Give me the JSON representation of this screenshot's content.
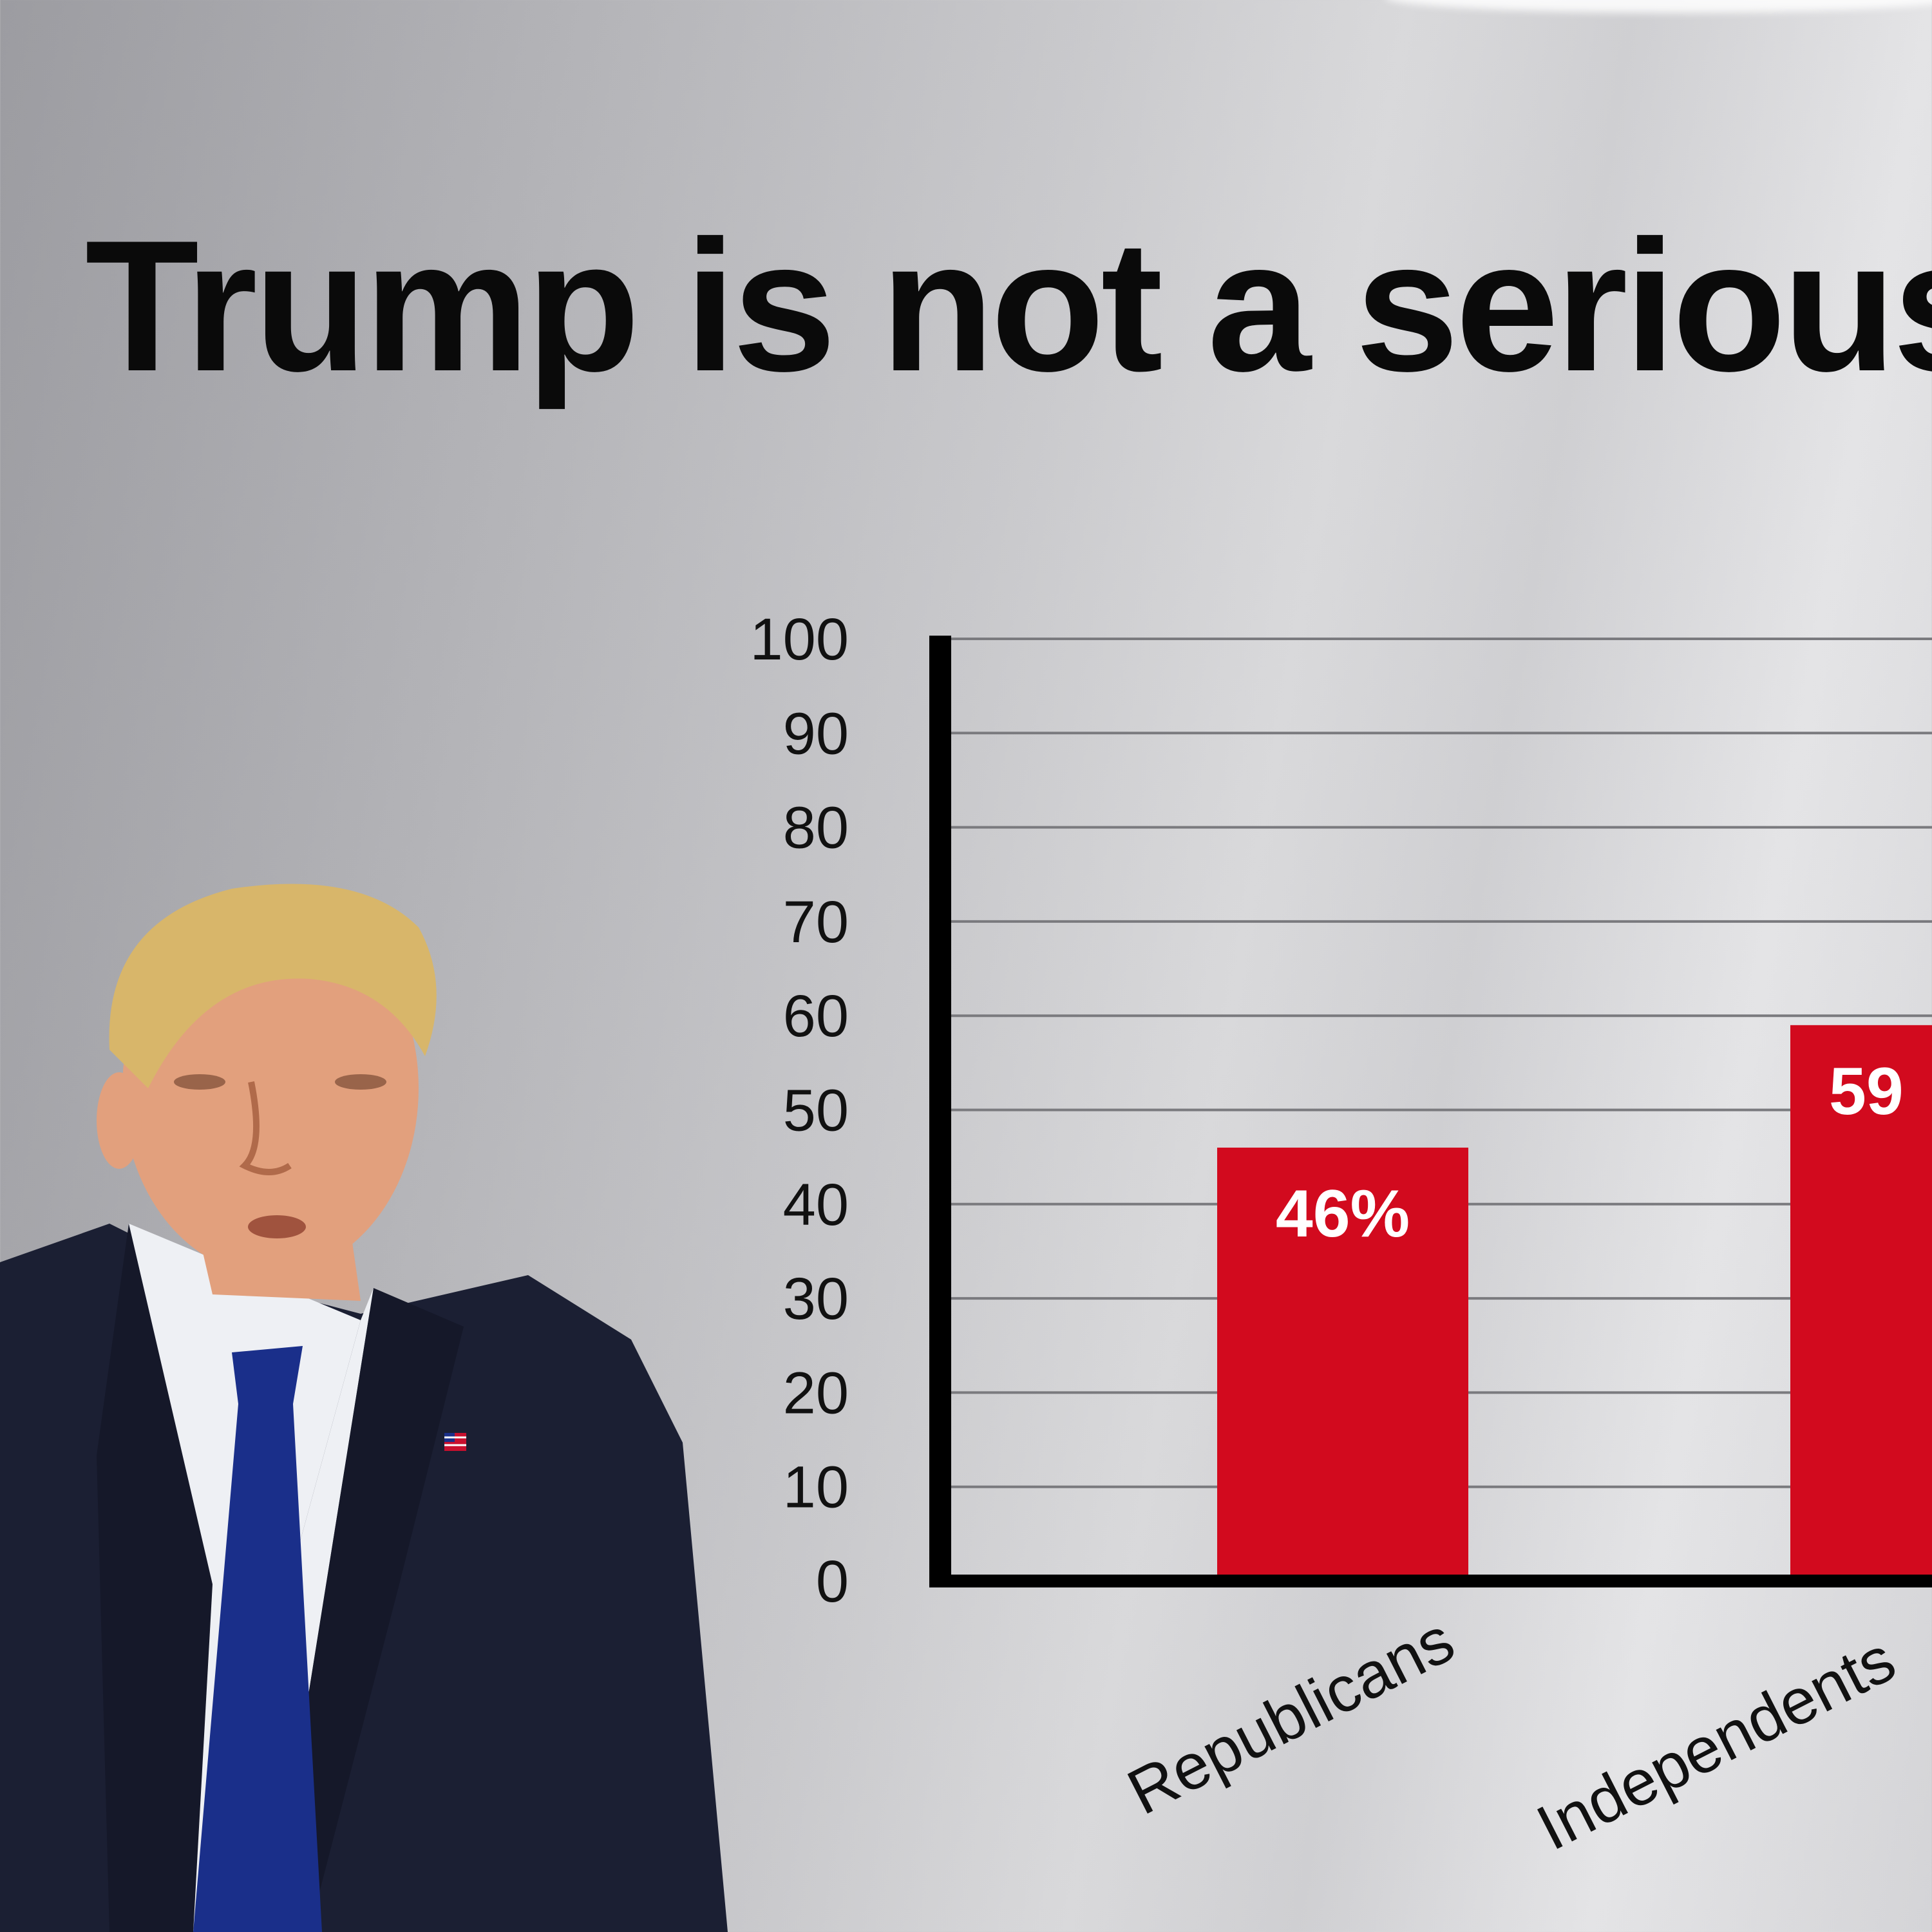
{
  "headline": "Trump is not a serious",
  "chart_data": {
    "type": "bar",
    "categories": [
      "Republicans",
      "Independents"
    ],
    "values": [
      46,
      59
    ],
    "data_labels": [
      "46%",
      "59"
    ],
    "yticks": [
      "0",
      "10",
      "20",
      "30",
      "40",
      "50",
      "60",
      "70",
      "80",
      "90",
      "100"
    ],
    "ylim": [
      0,
      100
    ],
    "grid": true,
    "bar_color": "#d20a1e",
    "label_color": "#ffffff",
    "axis_color": "#000000",
    "grid_color": "#7a7a7e"
  },
  "photo": {
    "icon": "person-speaking-photo",
    "suit_color": "#1b1f33",
    "tie_color": "#1a2f8a",
    "shirt_color": "#eef0f4",
    "hair_color": "#d8b66a",
    "skin_color": "#e2a07d"
  }
}
